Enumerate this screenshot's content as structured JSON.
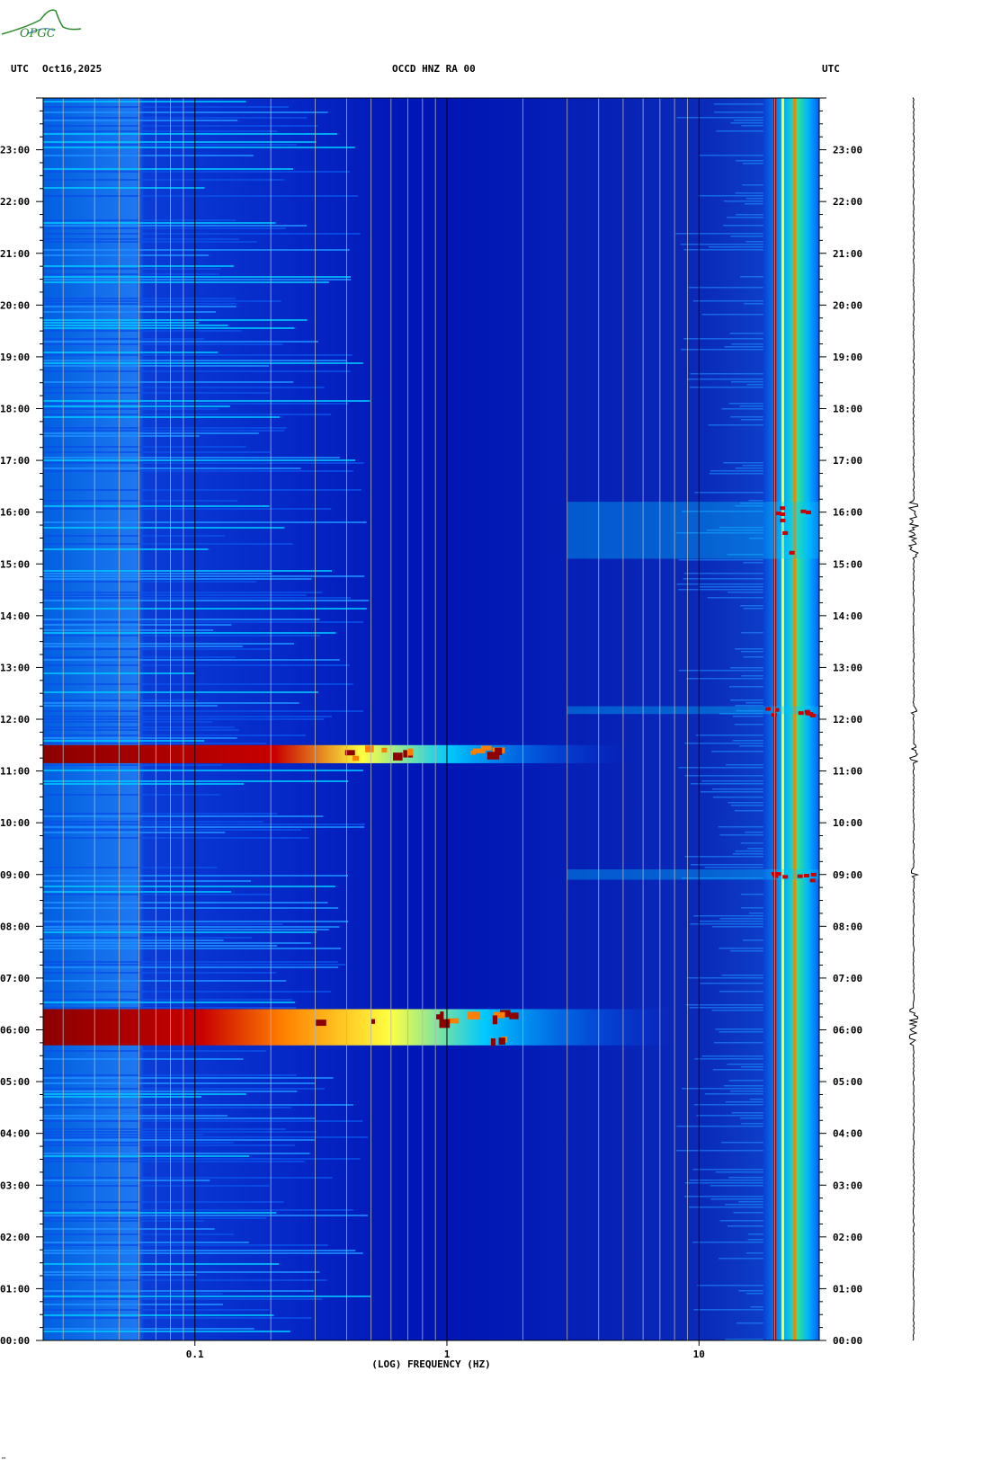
{
  "header": {
    "left_tz": "UTC",
    "date": "Oct16,2025",
    "station": "OCCD HNZ RA 00",
    "right_tz": "UTC"
  },
  "logo": {
    "text": "OPGC",
    "color": "#2a8a2a"
  },
  "footer_mark": "™",
  "chart_data": {
    "type": "heatmap",
    "title": "OCCD HNZ RA 00",
    "xlabel": "(LOG) FREQUENCY (HZ)",
    "x_scale": "log",
    "xlim": [
      0.025,
      30
    ],
    "x_major_ticks": [
      {
        "value": 0.1,
        "label": "0.1"
      },
      {
        "value": 1,
        "label": "1"
      },
      {
        "value": 10,
        "label": "10"
      }
    ],
    "ylim_hours": [
      0,
      24
    ],
    "y_tick_labels": [
      "00:00",
      "01:00",
      "02:00",
      "03:00",
      "04:00",
      "05:00",
      "06:00",
      "07:00",
      "08:00",
      "09:00",
      "10:00",
      "11:00",
      "12:00",
      "13:00",
      "14:00",
      "15:00",
      "16:00",
      "17:00",
      "18:00",
      "19:00",
      "20:00",
      "21:00",
      "22:00",
      "23:00"
    ],
    "colormap": [
      "#00008c",
      "#0020c8",
      "#0060ff",
      "#00c8ff",
      "#ffff40",
      "#ff8000",
      "#c80000",
      "#8c0000"
    ],
    "background_level": "low",
    "events": [
      {
        "label": "earthquake",
        "start_hour": 5.7,
        "end_hour": 6.4,
        "max_freq_hz": 8
      },
      {
        "label": "earthquake",
        "start_hour": 11.15,
        "end_hour": 11.5,
        "max_freq_hz": 5
      },
      {
        "label": "noise",
        "start_hour": 12.1,
        "end_hour": 12.25,
        "max_freq_hz": 30
      },
      {
        "label": "noise",
        "start_hour": 15.1,
        "end_hour": 16.2,
        "max_freq_hz": 30
      },
      {
        "label": "noise",
        "start_hour": 8.9,
        "end_hour": 9.1,
        "max_freq_hz": 30
      }
    ],
    "persistent_lines_hz": [
      20,
      21.5,
      24
    ]
  }
}
